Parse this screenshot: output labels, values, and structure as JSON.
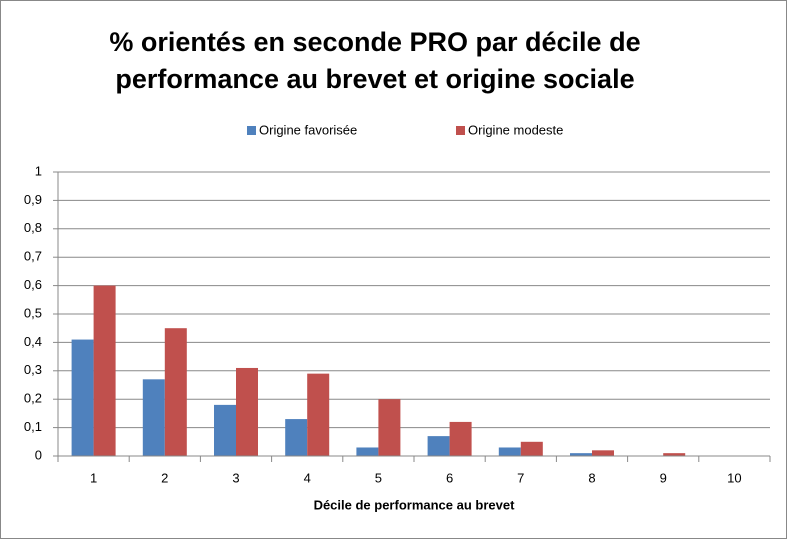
{
  "chart_data": {
    "type": "bar",
    "title": "% orientés en seconde PRO par décile de performance au brevet et origine sociale",
    "x_label": "Décile de performance au brevet",
    "categories": [
      "1",
      "2",
      "3",
      "4",
      "5",
      "6",
      "7",
      "8",
      "9",
      "10"
    ],
    "series": [
      {
        "name": "Origine favorisée",
        "color": "#4f81bd",
        "values": [
          0.41,
          0.27,
          0.18,
          0.13,
          0.03,
          0.07,
          0.03,
          0.01,
          0,
          0
        ]
      },
      {
        "name": "Origine modeste",
        "color": "#c0504d",
        "values": [
          0.6,
          0.45,
          0.31,
          0.29,
          0.2,
          0.12,
          0.05,
          0.02,
          0.01,
          0
        ]
      }
    ],
    "ylim": [
      0,
      1
    ],
    "yticks": [
      0,
      {
        "value": 0.1,
        "label": "0,1"
      },
      {
        "value": 0.2,
        "label": "0,2"
      },
      {
        "value": 0.3,
        "label": "0,3"
      },
      {
        "value": 0.4,
        "label": "0,4"
      },
      {
        "value": 0.5,
        "label": "0,5"
      },
      {
        "value": 0.6,
        "label": "0,6"
      },
      {
        "value": 0.7,
        "label": "0,7"
      },
      {
        "value": 0.8,
        "label": "0,8"
      },
      {
        "value": 0.9,
        "label": "0,9"
      },
      1
    ],
    "grid": true,
    "legend": "top"
  }
}
